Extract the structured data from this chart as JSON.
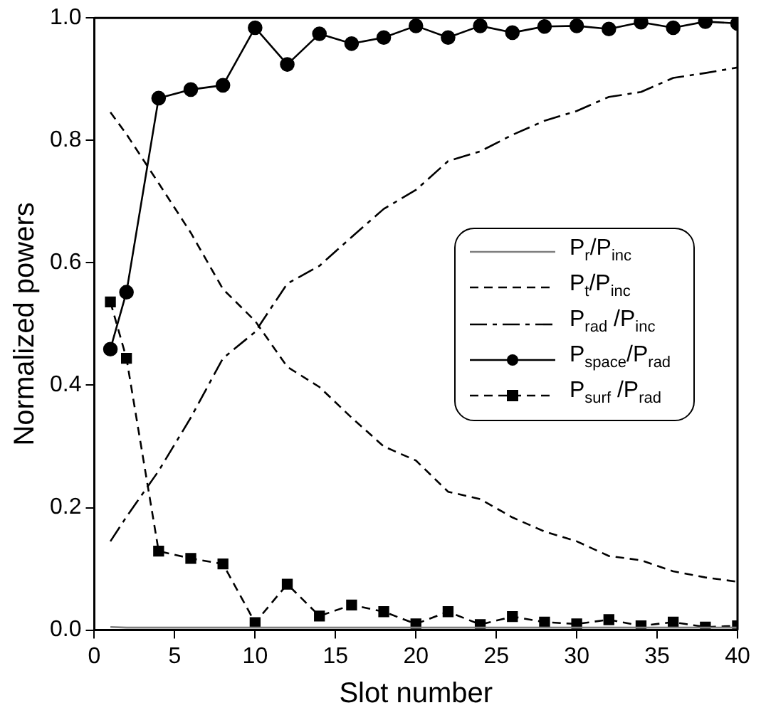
{
  "chart_data": {
    "type": "line",
    "xlabel": "Slot number",
    "ylabel": "Normalized powers",
    "x": [
      1,
      2,
      4,
      6,
      8,
      10,
      12,
      14,
      16,
      18,
      20,
      22,
      24,
      26,
      28,
      30,
      32,
      34,
      36,
      38,
      40
    ],
    "xlim": [
      0,
      40
    ],
    "xticks": [
      0,
      5,
      10,
      15,
      20,
      25,
      30,
      35,
      40
    ],
    "ylim": [
      0,
      1
    ],
    "yticks": [
      {
        "value": 0,
        "label": "0.0"
      },
      0.2,
      0.4,
      0.6,
      0.8,
      {
        "value": 1,
        "label": "1.0"
      }
    ],
    "grid": false,
    "legend": "right",
    "marker": "none",
    "series": [
      {
        "name": "P$_{r}$/P$_{inc}$",
        "color": "#7f7f7f",
        "line_style": "solid",
        "values": [
          0.005,
          0.004,
          0.004,
          0.004,
          0.004,
          0.004,
          0.004,
          0.004,
          0.004,
          0.004,
          0.004,
          0.004,
          0.004,
          0.004,
          0.004,
          0.004,
          0.004,
          0.004,
          0.004,
          0.004,
          0.004
        ]
      },
      {
        "name": "P$_{t}$/P$_{inc}$",
        "color": "#000000",
        "line_style": "dashed",
        "values": [
          0.846,
          0.81,
          0.73,
          0.649,
          0.557,
          0.505,
          0.43,
          0.397,
          0.347,
          0.3,
          0.277,
          0.226,
          0.214,
          0.184,
          0.161,
          0.145,
          0.121,
          0.114,
          0.096,
          0.086,
          0.079
        ]
      },
      {
        "name": "P$_{rad}$ /P$_{inc}$",
        "color": "#000000",
        "line_style": "dashdot",
        "values": [
          0.145,
          0.185,
          0.26,
          0.347,
          0.444,
          0.487,
          0.566,
          0.595,
          0.642,
          0.688,
          0.719,
          0.766,
          0.782,
          0.809,
          0.832,
          0.848,
          0.871,
          0.879,
          0.902,
          0.91,
          0.919
        ]
      },
      {
        "name": "P$_{space}$/P$_{rad}$",
        "color": "#000000",
        "line_style": "solid",
        "marker": "circle",
        "values": [
          0.459,
          0.552,
          0.869,
          0.883,
          0.89,
          0.984,
          0.924,
          0.974,
          0.958,
          0.968,
          0.987,
          0.968,
          0.987,
          0.976,
          0.986,
          0.987,
          0.982,
          0.993,
          0.984,
          0.994,
          0.991
        ]
      },
      {
        "name": "P$_{surf}$ /P$_{rad}$",
        "color": "#000000",
        "line_style": "dashed",
        "marker": "square",
        "values": [
          0.536,
          0.444,
          0.129,
          0.117,
          0.108,
          0.012,
          0.075,
          0.023,
          0.041,
          0.03,
          0.01,
          0.03,
          0.009,
          0.022,
          0.013,
          0.01,
          0.017,
          0.007,
          0.013,
          0.005,
          0.007
        ]
      }
    ]
  }
}
